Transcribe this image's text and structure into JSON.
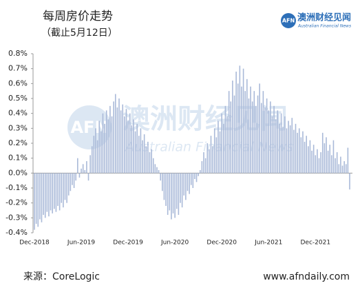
{
  "chart_data": {
    "type": "bar",
    "title": "每周房价走势",
    "subtitle": "（截止5月12日）",
    "categories": [
      "Dec-2018",
      null,
      null,
      null,
      null,
      null,
      null,
      null,
      null,
      null,
      null,
      null,
      null,
      null,
      null,
      null,
      null,
      null,
      null,
      null,
      null,
      null,
      null,
      null,
      null,
      null,
      "Jun-2019",
      null,
      null,
      null,
      null,
      null,
      null,
      null,
      null,
      null,
      null,
      null,
      null,
      null,
      null,
      null,
      null,
      null,
      null,
      null,
      null,
      null,
      null,
      null,
      null,
      null,
      "Dec-2019",
      null,
      null,
      null,
      null,
      null,
      null,
      null,
      null,
      null,
      null,
      null,
      null,
      null,
      null,
      null,
      null,
      null,
      null,
      null,
      null,
      null,
      null,
      null,
      null,
      null,
      "Jun-2020",
      null,
      null,
      null,
      null,
      null,
      null,
      null,
      null,
      null,
      null,
      null,
      null,
      null,
      null,
      null,
      null,
      null,
      null,
      null,
      null,
      null,
      null,
      null,
      null,
      null,
      "Dec-2020",
      null,
      null,
      null,
      null,
      null,
      null,
      null,
      null,
      null,
      null,
      null,
      null,
      null,
      null,
      null,
      null,
      null,
      null,
      null,
      null,
      null,
      null,
      null,
      null,
      null,
      "Jun-2021",
      null,
      null,
      null,
      null,
      null,
      null,
      null,
      null,
      null,
      null,
      null,
      null,
      null,
      null,
      null,
      null,
      null,
      null,
      null,
      null,
      null,
      null,
      null,
      null,
      null,
      "Dec-2021",
      null,
      null,
      null,
      null,
      null,
      null,
      null,
      null,
      null,
      null,
      null,
      null,
      null,
      null,
      null,
      null,
      null,
      null,
      null
    ],
    "values": [
      -0.38,
      -0.34,
      -0.36,
      -0.31,
      -0.33,
      -0.28,
      -0.3,
      -0.26,
      -0.29,
      -0.25,
      -0.27,
      -0.24,
      -0.26,
      -0.22,
      -0.25,
      -0.2,
      -0.23,
      -0.18,
      -0.2,
      -0.15,
      -0.12,
      -0.08,
      -0.1,
      -0.05,
      0.1,
      -0.03,
      0.03,
      0.06,
      0.02,
      0.08,
      -0.05,
      0.12,
      0.18,
      0.25,
      0.3,
      0.22,
      0.35,
      0.28,
      0.4,
      0.33,
      0.42,
      0.36,
      0.45,
      0.38,
      0.48,
      0.53,
      0.44,
      0.5,
      0.42,
      0.46,
      0.38,
      0.43,
      0.35,
      0.4,
      0.32,
      0.36,
      0.28,
      0.33,
      0.25,
      0.3,
      0.22,
      0.26,
      0.18,
      0.21,
      0.14,
      0.16,
      0.1,
      0.06,
      0.04,
      0.02,
      -0.05,
      -0.12,
      -0.18,
      -0.22,
      -0.28,
      -0.25,
      -0.31,
      -0.27,
      -0.3,
      -0.24,
      -0.28,
      -0.2,
      -0.23,
      -0.15,
      -0.18,
      -0.12,
      -0.14,
      -0.08,
      -0.1,
      -0.04,
      -0.06,
      -0.02,
      0.02,
      0.08,
      0.14,
      0.1,
      0.2,
      0.16,
      0.25,
      0.18,
      0.3,
      0.24,
      0.35,
      0.28,
      0.4,
      0.33,
      0.45,
      0.38,
      0.55,
      0.48,
      0.62,
      0.52,
      0.68,
      0.6,
      0.72,
      0.58,
      0.7,
      0.55,
      0.63,
      0.5,
      0.58,
      0.48,
      0.55,
      0.45,
      0.52,
      0.6,
      0.47,
      0.55,
      0.44,
      0.5,
      0.42,
      0.48,
      0.38,
      0.45,
      0.36,
      0.42,
      0.33,
      0.4,
      0.31,
      0.38,
      0.3,
      0.35,
      0.32,
      0.37,
      0.29,
      0.33,
      0.27,
      0.3,
      0.24,
      0.28,
      0.21,
      0.25,
      0.18,
      0.22,
      0.15,
      0.19,
      0.12,
      0.16,
      0.1,
      0.14,
      0.27,
      0.2,
      0.24,
      0.15,
      0.19,
      0.12,
      0.22,
      0.1,
      0.14,
      0.06,
      0.11,
      0.05,
      0.08,
      0.06,
      0.17,
      -0.11
    ],
    "color": "#a9b9d8",
    "ylim": [
      -0.4,
      0.8
    ],
    "yticks": [
      {
        "value": -0.4,
        "label": "-0.4%"
      },
      {
        "value": -0.3,
        "label": "-0.3%"
      },
      {
        "value": -0.2,
        "label": "-0.2%"
      },
      {
        "value": -0.1,
        "label": "-0.1%"
      },
      {
        "value": 0,
        "label": "0.0%"
      },
      {
        "value": 0.1,
        "label": "0.1%"
      },
      {
        "value": 0.2,
        "label": "0.2%"
      },
      {
        "value": 0.3,
        "label": "0.3%"
      },
      {
        "value": 0.4,
        "label": "0.4%"
      },
      {
        "value": 0.5,
        "label": "0.5%"
      },
      {
        "value": 0.6,
        "label": "0.6%"
      },
      {
        "value": 0.7,
        "label": "0.7%"
      },
      {
        "value": 0.8,
        "label": "0.8%"
      }
    ],
    "grid": false,
    "source": "来源：CoreLogic"
  },
  "branding": {
    "mark": "AFN",
    "name": "澳洲财经见闻",
    "english": "Australian Financial News",
    "website": "www.afndaily.com"
  }
}
